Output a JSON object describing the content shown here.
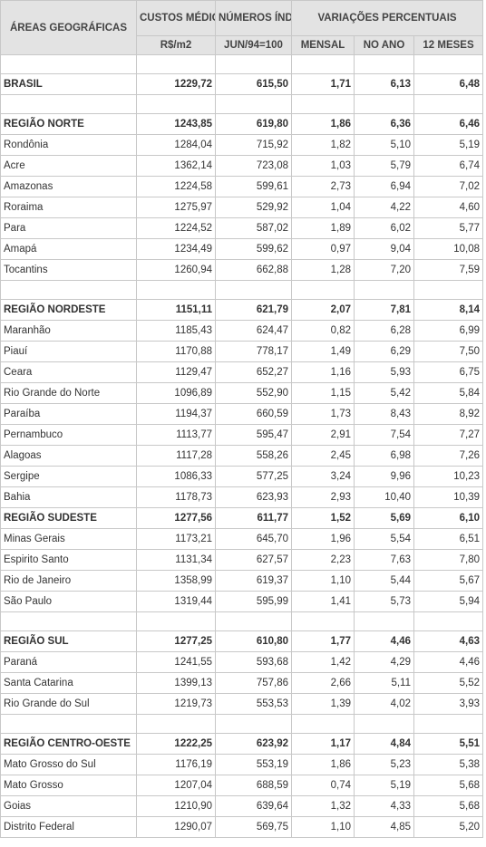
{
  "header": {
    "area_label": "ÁREAS GEOGRÁFICAS",
    "custos_label": "CUSTOS MÉDIOS",
    "numeros_label": "NÚMEROS ÍNDICES",
    "variacoes_label": "VARIAÇÕES PERCENTUAIS",
    "sub": [
      "R$/m2",
      "JUN/94=100",
      "MENSAL",
      "NO ANO",
      "12 MESES"
    ]
  },
  "rows": [
    {
      "kind": "spacer"
    },
    {
      "kind": "region",
      "name": "BRASIL",
      "values": [
        "1229,72",
        "615,50",
        "1,71",
        "6,13",
        "6,48"
      ]
    },
    {
      "kind": "spacer"
    },
    {
      "kind": "region",
      "name": "REGIÃO NORTE",
      "values": [
        "1243,85",
        "619,80",
        "1,86",
        "6,36",
        "6,46"
      ]
    },
    {
      "kind": "state",
      "name": "Rondônia",
      "values": [
        "1284,04",
        "715,92",
        "1,82",
        "5,10",
        "5,19"
      ]
    },
    {
      "kind": "state",
      "name": "Acre",
      "values": [
        "1362,14",
        "723,08",
        "1,03",
        "5,79",
        "6,74"
      ]
    },
    {
      "kind": "state",
      "name": "Amazonas",
      "values": [
        "1224,58",
        "599,61",
        "2,73",
        "6,94",
        "7,02"
      ]
    },
    {
      "kind": "state",
      "name": "Roraima",
      "values": [
        "1275,97",
        "529,92",
        "1,04",
        "4,22",
        "4,60"
      ]
    },
    {
      "kind": "state",
      "name": "Para",
      "values": [
        "1224,52",
        "587,02",
        "1,89",
        "6,02",
        "5,77"
      ]
    },
    {
      "kind": "state",
      "name": "Amapá",
      "values": [
        "1234,49",
        "599,62",
        "0,97",
        "9,04",
        "10,08"
      ]
    },
    {
      "kind": "state",
      "name": "Tocantins",
      "values": [
        "1260,94",
        "662,88",
        "1,28",
        "7,20",
        "7,59"
      ]
    },
    {
      "kind": "spacer"
    },
    {
      "kind": "region",
      "name": "REGIÃO NORDESTE",
      "values": [
        "1151,11",
        "621,79",
        "2,07",
        "7,81",
        "8,14"
      ]
    },
    {
      "kind": "state",
      "name": "Maranhão",
      "values": [
        "1185,43",
        "624,47",
        "0,82",
        "6,28",
        "6,99"
      ]
    },
    {
      "kind": "state",
      "name": "Piauí",
      "values": [
        "1170,88",
        "778,17",
        "1,49",
        "6,29",
        "7,50"
      ]
    },
    {
      "kind": "state",
      "name": "Ceara",
      "values": [
        "1129,47",
        "652,27",
        "1,16",
        "5,93",
        "6,75"
      ]
    },
    {
      "kind": "state",
      "name": "Rio Grande do Norte",
      "values": [
        "1096,89",
        "552,90",
        "1,15",
        "5,42",
        "5,84"
      ]
    },
    {
      "kind": "state",
      "name": "Paraíba",
      "values": [
        "1194,37",
        "660,59",
        "1,73",
        "8,43",
        "8,92"
      ]
    },
    {
      "kind": "state",
      "name": "Pernambuco",
      "values": [
        "1113,77",
        "595,47",
        "2,91",
        "7,54",
        "7,27"
      ]
    },
    {
      "kind": "state",
      "name": "Alagoas",
      "values": [
        "1117,28",
        "558,26",
        "2,45",
        "6,98",
        "7,26"
      ]
    },
    {
      "kind": "state",
      "name": "Sergipe",
      "values": [
        "1086,33",
        "577,25",
        "3,24",
        "9,96",
        "10,23"
      ]
    },
    {
      "kind": "state",
      "name": "Bahia",
      "values": [
        "1178,73",
        "623,93",
        "2,93",
        "10,40",
        "10,39"
      ]
    },
    {
      "kind": "region",
      "name": "REGIÃO SUDESTE",
      "values": [
        "1277,56",
        "611,77",
        "1,52",
        "5,69",
        "6,10"
      ]
    },
    {
      "kind": "state",
      "name": "Minas Gerais",
      "values": [
        "1173,21",
        "645,70",
        "1,96",
        "5,54",
        "6,51"
      ]
    },
    {
      "kind": "state",
      "name": "Espirito Santo",
      "values": [
        "1131,34",
        "627,57",
        "2,23",
        "7,63",
        "7,80"
      ]
    },
    {
      "kind": "state",
      "name": "Rio de Janeiro",
      "values": [
        "1358,99",
        "619,37",
        "1,10",
        "5,44",
        "5,67"
      ]
    },
    {
      "kind": "state",
      "name": "São Paulo",
      "values": [
        "1319,44",
        "595,99",
        "1,41",
        "5,73",
        "5,94"
      ]
    },
    {
      "kind": "spacer"
    },
    {
      "kind": "region",
      "name": "REGIÃO SUL",
      "values": [
        "1277,25",
        "610,80",
        "1,77",
        "4,46",
        "4,63"
      ]
    },
    {
      "kind": "state",
      "name": "Paraná",
      "values": [
        "1241,55",
        "593,68",
        "1,42",
        "4,29",
        "4,46"
      ]
    },
    {
      "kind": "state",
      "name": "Santa Catarina",
      "values": [
        "1399,13",
        "757,86",
        "2,66",
        "5,11",
        "5,52"
      ]
    },
    {
      "kind": "state",
      "name": "Rio Grande do Sul",
      "values": [
        "1219,73",
        "553,53",
        "1,39",
        "4,02",
        "3,93"
      ]
    },
    {
      "kind": "spacer"
    },
    {
      "kind": "region",
      "name": "REGIÃO CENTRO-OESTE",
      "values": [
        "1222,25",
        "623,92",
        "1,17",
        "4,84",
        "5,51"
      ]
    },
    {
      "kind": "state",
      "name": "Mato Grosso do Sul",
      "values": [
        "1176,19",
        "553,19",
        "1,86",
        "5,23",
        "5,38"
      ]
    },
    {
      "kind": "state",
      "name": "Mato Grosso",
      "values": [
        "1207,04",
        "688,59",
        "0,74",
        "5,19",
        "5,68"
      ]
    },
    {
      "kind": "state",
      "name": "Goias",
      "values": [
        "1210,90",
        "639,64",
        "1,32",
        "4,33",
        "5,68"
      ]
    },
    {
      "kind": "state",
      "name": "Distrito Federal",
      "values": [
        "1290,07",
        "569,75",
        "1,10",
        "4,85",
        "5,20"
      ]
    }
  ]
}
